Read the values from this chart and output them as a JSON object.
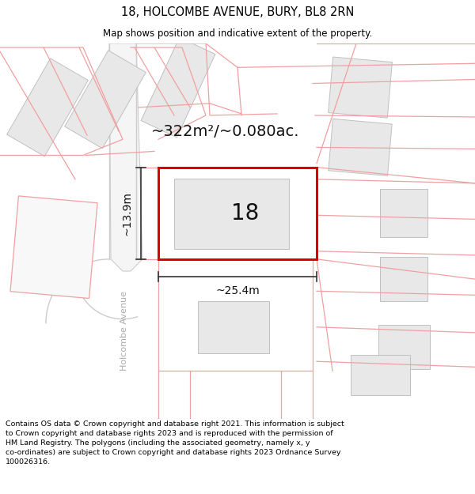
{
  "title": "18, HOLCOMBE AVENUE, BURY, BL8 2RN",
  "subtitle": "Map shows position and indicative extent of the property.",
  "footer": "Contains OS data © Crown copyright and database right 2021. This information is subject\nto Crown copyright and database rights 2023 and is reproduced with the permission of\nHM Land Registry. The polygons (including the associated geometry, namely x, y\nco-ordinates) are subject to Crown copyright and database rights 2023 Ordnance Survey\n100026316.",
  "area_label": "~322m²/~0.080ac.",
  "width_label": "~25.4m",
  "height_label": "~13.9m",
  "number_label": "18",
  "street_label": "Holcombe Avenue",
  "bg_color": "#ffffff",
  "plot_color": "#dd0000",
  "building_fill": "#e8e8e8",
  "road_line_color": "#f0a0a0",
  "road_edge_color": "#cccccc",
  "dim_line_color": "#333333",
  "title_fontsize": 10.5,
  "subtitle_fontsize": 8.5,
  "footer_fontsize": 6.8,
  "number_fontsize": 20,
  "street_fontsize": 8,
  "area_fontsize": 14,
  "dim_fontsize": 10
}
